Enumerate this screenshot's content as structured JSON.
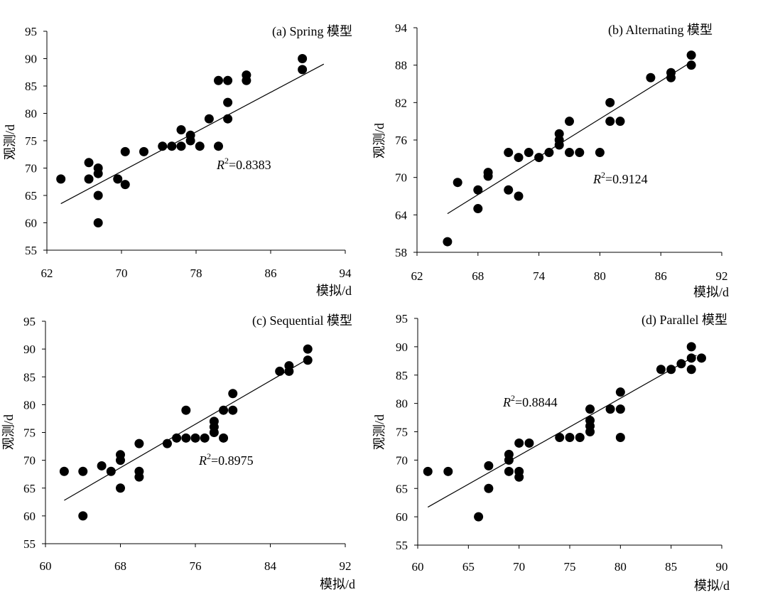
{
  "chart_data": [
    {
      "type": "scatter",
      "title": "(a) Spring 模型",
      "xlabel": "模拟/d",
      "ylabel": "观测/d",
      "xlim": [
        62,
        94
      ],
      "ylim": [
        55,
        95
      ],
      "xticks": [
        "62",
        "70",
        "78",
        "86",
        "94"
      ],
      "yticks": [
        "55",
        "60",
        "65",
        "70",
        "75",
        "80",
        "85",
        "90",
        "95"
      ],
      "r2_label": "R",
      "r2_value": "=0.8383",
      "fit_line": {
        "x": [
          63.5,
          91.7
        ],
        "y": [
          63.5,
          89.0
        ]
      },
      "points": [
        [
          63.5,
          68
        ],
        [
          66.5,
          71
        ],
        [
          66.5,
          68
        ],
        [
          67.5,
          65
        ],
        [
          67.5,
          60
        ],
        [
          67.5,
          69
        ],
        [
          67.5,
          70
        ],
        [
          69.6,
          68
        ],
        [
          70.4,
          67
        ],
        [
          70.4,
          73
        ],
        [
          72.4,
          73
        ],
        [
          74.4,
          74
        ],
        [
          75.4,
          74
        ],
        [
          76.4,
          77
        ],
        [
          76.4,
          74
        ],
        [
          77.4,
          76
        ],
        [
          77.4,
          75
        ],
        [
          78.4,
          74
        ],
        [
          79.4,
          79
        ],
        [
          80.4,
          74
        ],
        [
          80.4,
          86
        ],
        [
          81.4,
          86
        ],
        [
          81.4,
          82
        ],
        [
          81.4,
          79
        ],
        [
          83.4,
          87
        ],
        [
          83.4,
          86
        ],
        [
          89.4,
          90
        ],
        [
          89.4,
          88
        ]
      ]
    },
    {
      "type": "scatter",
      "title": "(b) Alternating 模型",
      "xlabel": "模拟/d",
      "ylabel": "观测/d",
      "xlim": [
        62,
        92
      ],
      "ylim": [
        58,
        94
      ],
      "xticks": [
        "62",
        "68",
        "74",
        "80",
        "86",
        "92"
      ],
      "yticks": [
        "58",
        "64",
        "70",
        "76",
        "82",
        "88",
        "94"
      ],
      "r2_label": "R",
      "r2_value": "=0.9124",
      "fit_line": {
        "x": [
          65,
          89
        ],
        "y": [
          64.2,
          88.5
        ]
      },
      "points": [
        [
          65,
          59.7
        ],
        [
          66,
          69.2
        ],
        [
          68,
          68
        ],
        [
          68,
          65
        ],
        [
          69,
          70.2
        ],
        [
          69,
          70.8
        ],
        [
          71,
          68
        ],
        [
          71,
          74
        ],
        [
          72,
          73.2
        ],
        [
          72,
          67
        ],
        [
          73,
          74
        ],
        [
          74,
          73.2
        ],
        [
          75,
          74
        ],
        [
          76,
          75.2
        ],
        [
          76,
          76
        ],
        [
          76,
          77
        ],
        [
          77,
          79
        ],
        [
          77,
          74
        ],
        [
          78,
          74
        ],
        [
          80,
          74
        ],
        [
          81,
          79
        ],
        [
          81,
          82
        ],
        [
          82,
          79
        ],
        [
          85,
          86
        ],
        [
          87,
          86
        ],
        [
          87,
          86.8
        ],
        [
          89,
          88
        ],
        [
          89,
          89.6
        ]
      ]
    },
    {
      "type": "scatter",
      "title": "(c) Sequential 模型",
      "xlabel": "模拟/d",
      "ylabel": "观测/d",
      "xlim": [
        60,
        92
      ],
      "ylim": [
        55,
        95
      ],
      "xticks": [
        "60",
        "68",
        "76",
        "84",
        "92"
      ],
      "yticks": [
        "55",
        "60",
        "65",
        "70",
        "75",
        "80",
        "85",
        "90",
        "95"
      ],
      "r2_label": "R",
      "r2_value": "=0.8975",
      "fit_line": {
        "x": [
          62,
          88
        ],
        "y": [
          62.8,
          88.2
        ]
      },
      "points": [
        [
          62,
          68
        ],
        [
          64,
          68
        ],
        [
          64,
          60
        ],
        [
          66,
          69
        ],
        [
          67,
          68
        ],
        [
          68,
          65
        ],
        [
          68,
          70
        ],
        [
          68,
          71
        ],
        [
          70,
          73
        ],
        [
          70,
          68
        ],
        [
          70,
          67
        ],
        [
          73,
          73
        ],
        [
          74,
          74
        ],
        [
          75,
          79
        ],
        [
          75,
          74
        ],
        [
          76,
          74
        ],
        [
          77,
          74
        ],
        [
          78,
          77
        ],
        [
          78,
          76
        ],
        [
          78,
          75
        ],
        [
          79,
          79
        ],
        [
          79,
          74
        ],
        [
          80,
          82
        ],
        [
          80,
          79
        ],
        [
          85,
          86
        ],
        [
          86,
          87
        ],
        [
          86,
          86
        ],
        [
          88,
          90
        ],
        [
          88,
          88
        ]
      ]
    },
    {
      "type": "scatter",
      "title": "(d) Parallel 模型",
      "xlabel": "模拟/d",
      "ylabel": "观测/d",
      "xlim": [
        60,
        90
      ],
      "ylim": [
        55,
        95
      ],
      "xticks": [
        "60",
        "65",
        "70",
        "75",
        "80",
        "85",
        "90"
      ],
      "yticks": [
        "55",
        "60",
        "65",
        "70",
        "75",
        "80",
        "85",
        "90",
        "95"
      ],
      "r2_label": "R",
      "r2_value": "=0.8844",
      "fit_line": {
        "x": [
          61,
          87.5
        ],
        "y": [
          61.7,
          88.5
        ]
      },
      "points": [
        [
          61,
          68
        ],
        [
          63,
          68
        ],
        [
          66,
          60
        ],
        [
          67,
          65
        ],
        [
          67,
          69
        ],
        [
          69,
          68
        ],
        [
          69,
          70
        ],
        [
          69,
          71
        ],
        [
          70,
          67
        ],
        [
          70,
          68
        ],
        [
          70,
          73
        ],
        [
          71,
          73
        ],
        [
          74,
          74
        ],
        [
          75,
          74
        ],
        [
          76,
          74
        ],
        [
          77,
          75
        ],
        [
          77,
          76
        ],
        [
          77,
          77
        ],
        [
          77,
          79
        ],
        [
          79,
          79
        ],
        [
          80,
          74
        ],
        [
          80,
          79
        ],
        [
          80,
          82
        ],
        [
          84,
          86
        ],
        [
          85,
          86
        ],
        [
          86,
          87
        ],
        [
          87,
          86
        ],
        [
          87,
          88
        ],
        [
          87,
          90
        ],
        [
          88,
          88
        ]
      ]
    }
  ]
}
